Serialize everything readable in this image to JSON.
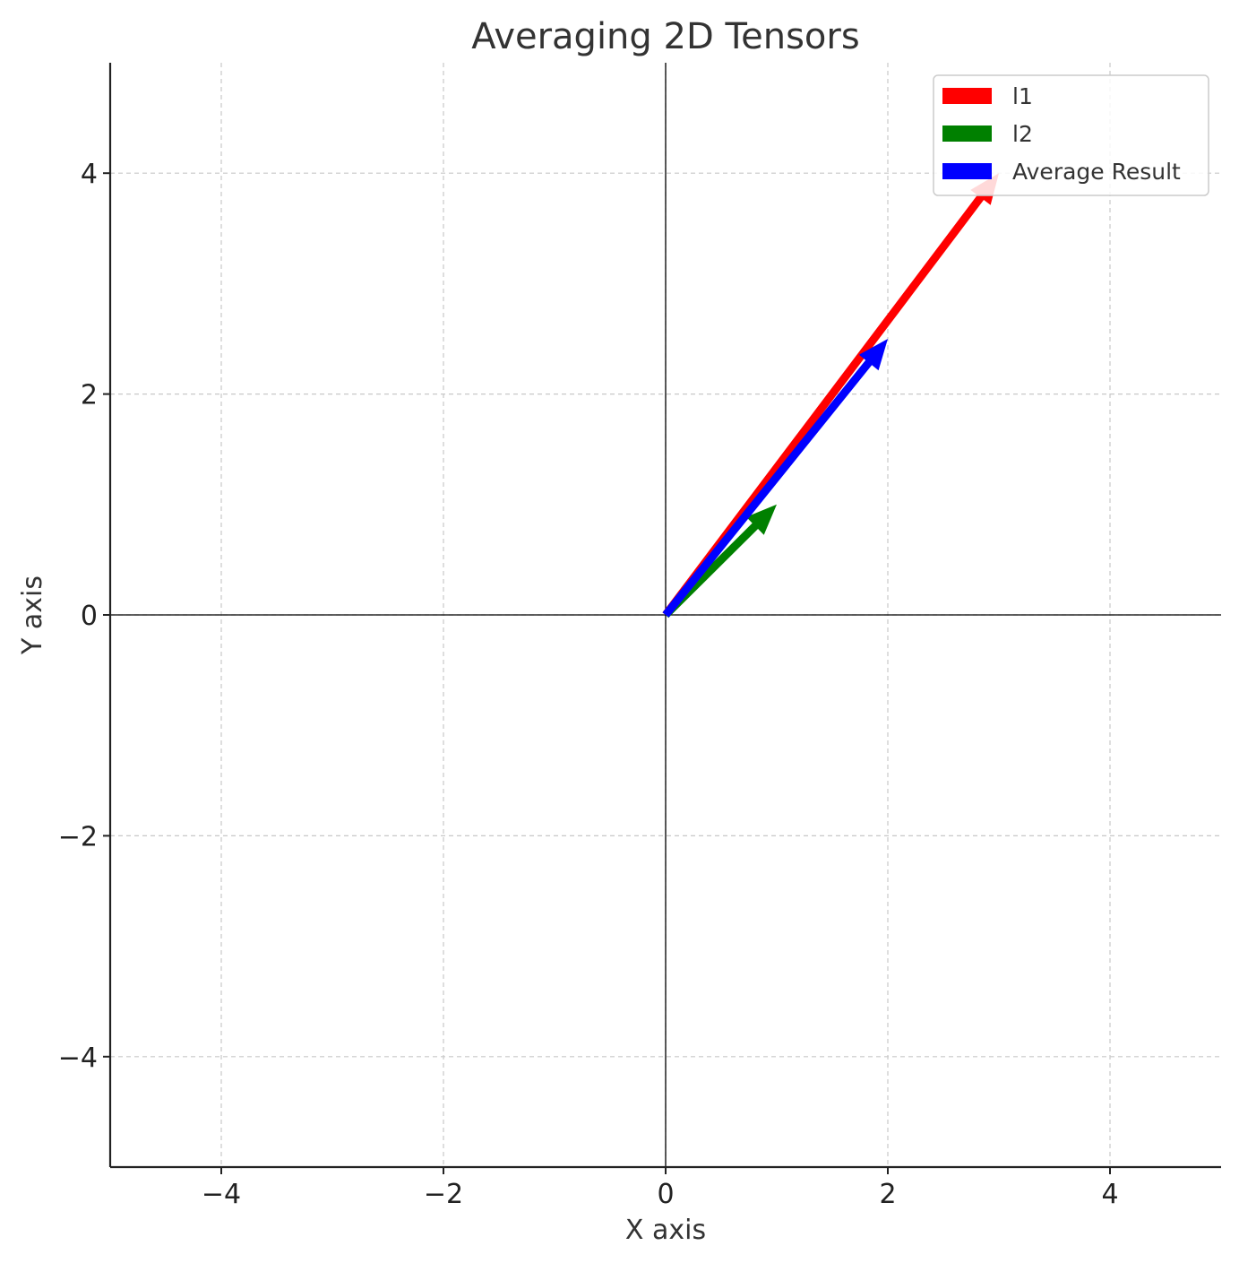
{
  "chart_data": {
    "type": "quiver",
    "title": "Averaging 2D Tensors",
    "xlabel": "X axis",
    "ylabel": "Y axis",
    "xlim": [
      -5,
      5
    ],
    "ylim": [
      -5,
      5
    ],
    "xticks": [
      -4,
      -2,
      0,
      2,
      4
    ],
    "yticks": [
      -4,
      -2,
      0,
      2,
      4
    ],
    "xtick_labels": [
      "−4",
      "−2",
      "0",
      "2",
      "4"
    ],
    "ytick_labels": [
      "−4",
      "−2",
      "0",
      "2",
      "4"
    ],
    "grid": true,
    "legend_position": "top-right",
    "series": [
      {
        "name": "l1",
        "origin": [
          0,
          0
        ],
        "vector": [
          3,
          4
        ],
        "color": "#ff0000"
      },
      {
        "name": "l2",
        "origin": [
          0,
          0
        ],
        "vector": [
          1,
          1
        ],
        "color": "#008000"
      },
      {
        "name": "Average Result",
        "origin": [
          0,
          0
        ],
        "vector": [
          2,
          2.5
        ],
        "color": "#0000ff"
      }
    ]
  }
}
